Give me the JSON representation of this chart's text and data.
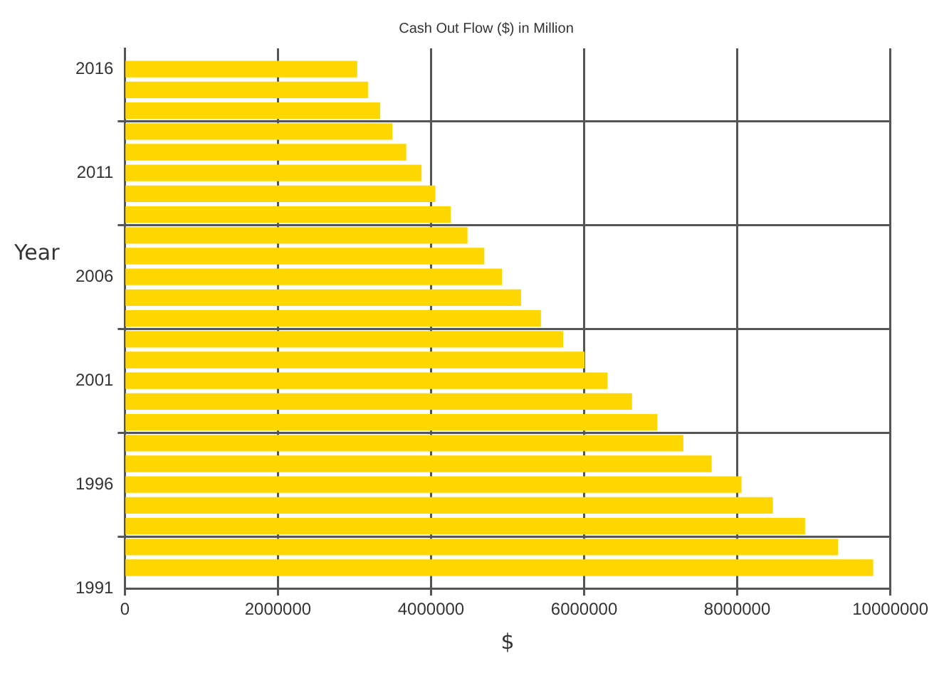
{
  "chart_data": {
    "type": "bar",
    "orientation": "horizontal",
    "title": "Cash Out Flow ($) in Million",
    "xlabel": "$",
    "ylabel": "Year",
    "x": [
      2016,
      2015,
      2014,
      2013,
      2012,
      2011,
      2010,
      2009,
      2008,
      2007,
      2006,
      2005,
      2004,
      2003,
      2002,
      2001,
      2000,
      1999,
      1998,
      1997,
      1996,
      1995,
      1994,
      1993,
      1992
    ],
    "values": [
      3030000,
      3170000,
      3330000,
      3490000,
      3670000,
      3870000,
      4050000,
      4250000,
      4470000,
      4690000,
      4920000,
      5170000,
      5430000,
      5720000,
      6000000,
      6300000,
      6620000,
      6950000,
      7290000,
      7660000,
      8050000,
      8460000,
      8880000,
      9310000,
      9770000
    ],
    "color": "#ffd700",
    "xlim": [
      0,
      10000000
    ],
    "xticks": [
      0,
      2000000,
      4000000,
      6000000,
      8000000,
      10000000
    ],
    "ylim": [
      1991,
      2017
    ],
    "yticks": [
      1991,
      1996,
      2001,
      2006,
      2011,
      2016
    ],
    "grid": true,
    "legend": false
  }
}
